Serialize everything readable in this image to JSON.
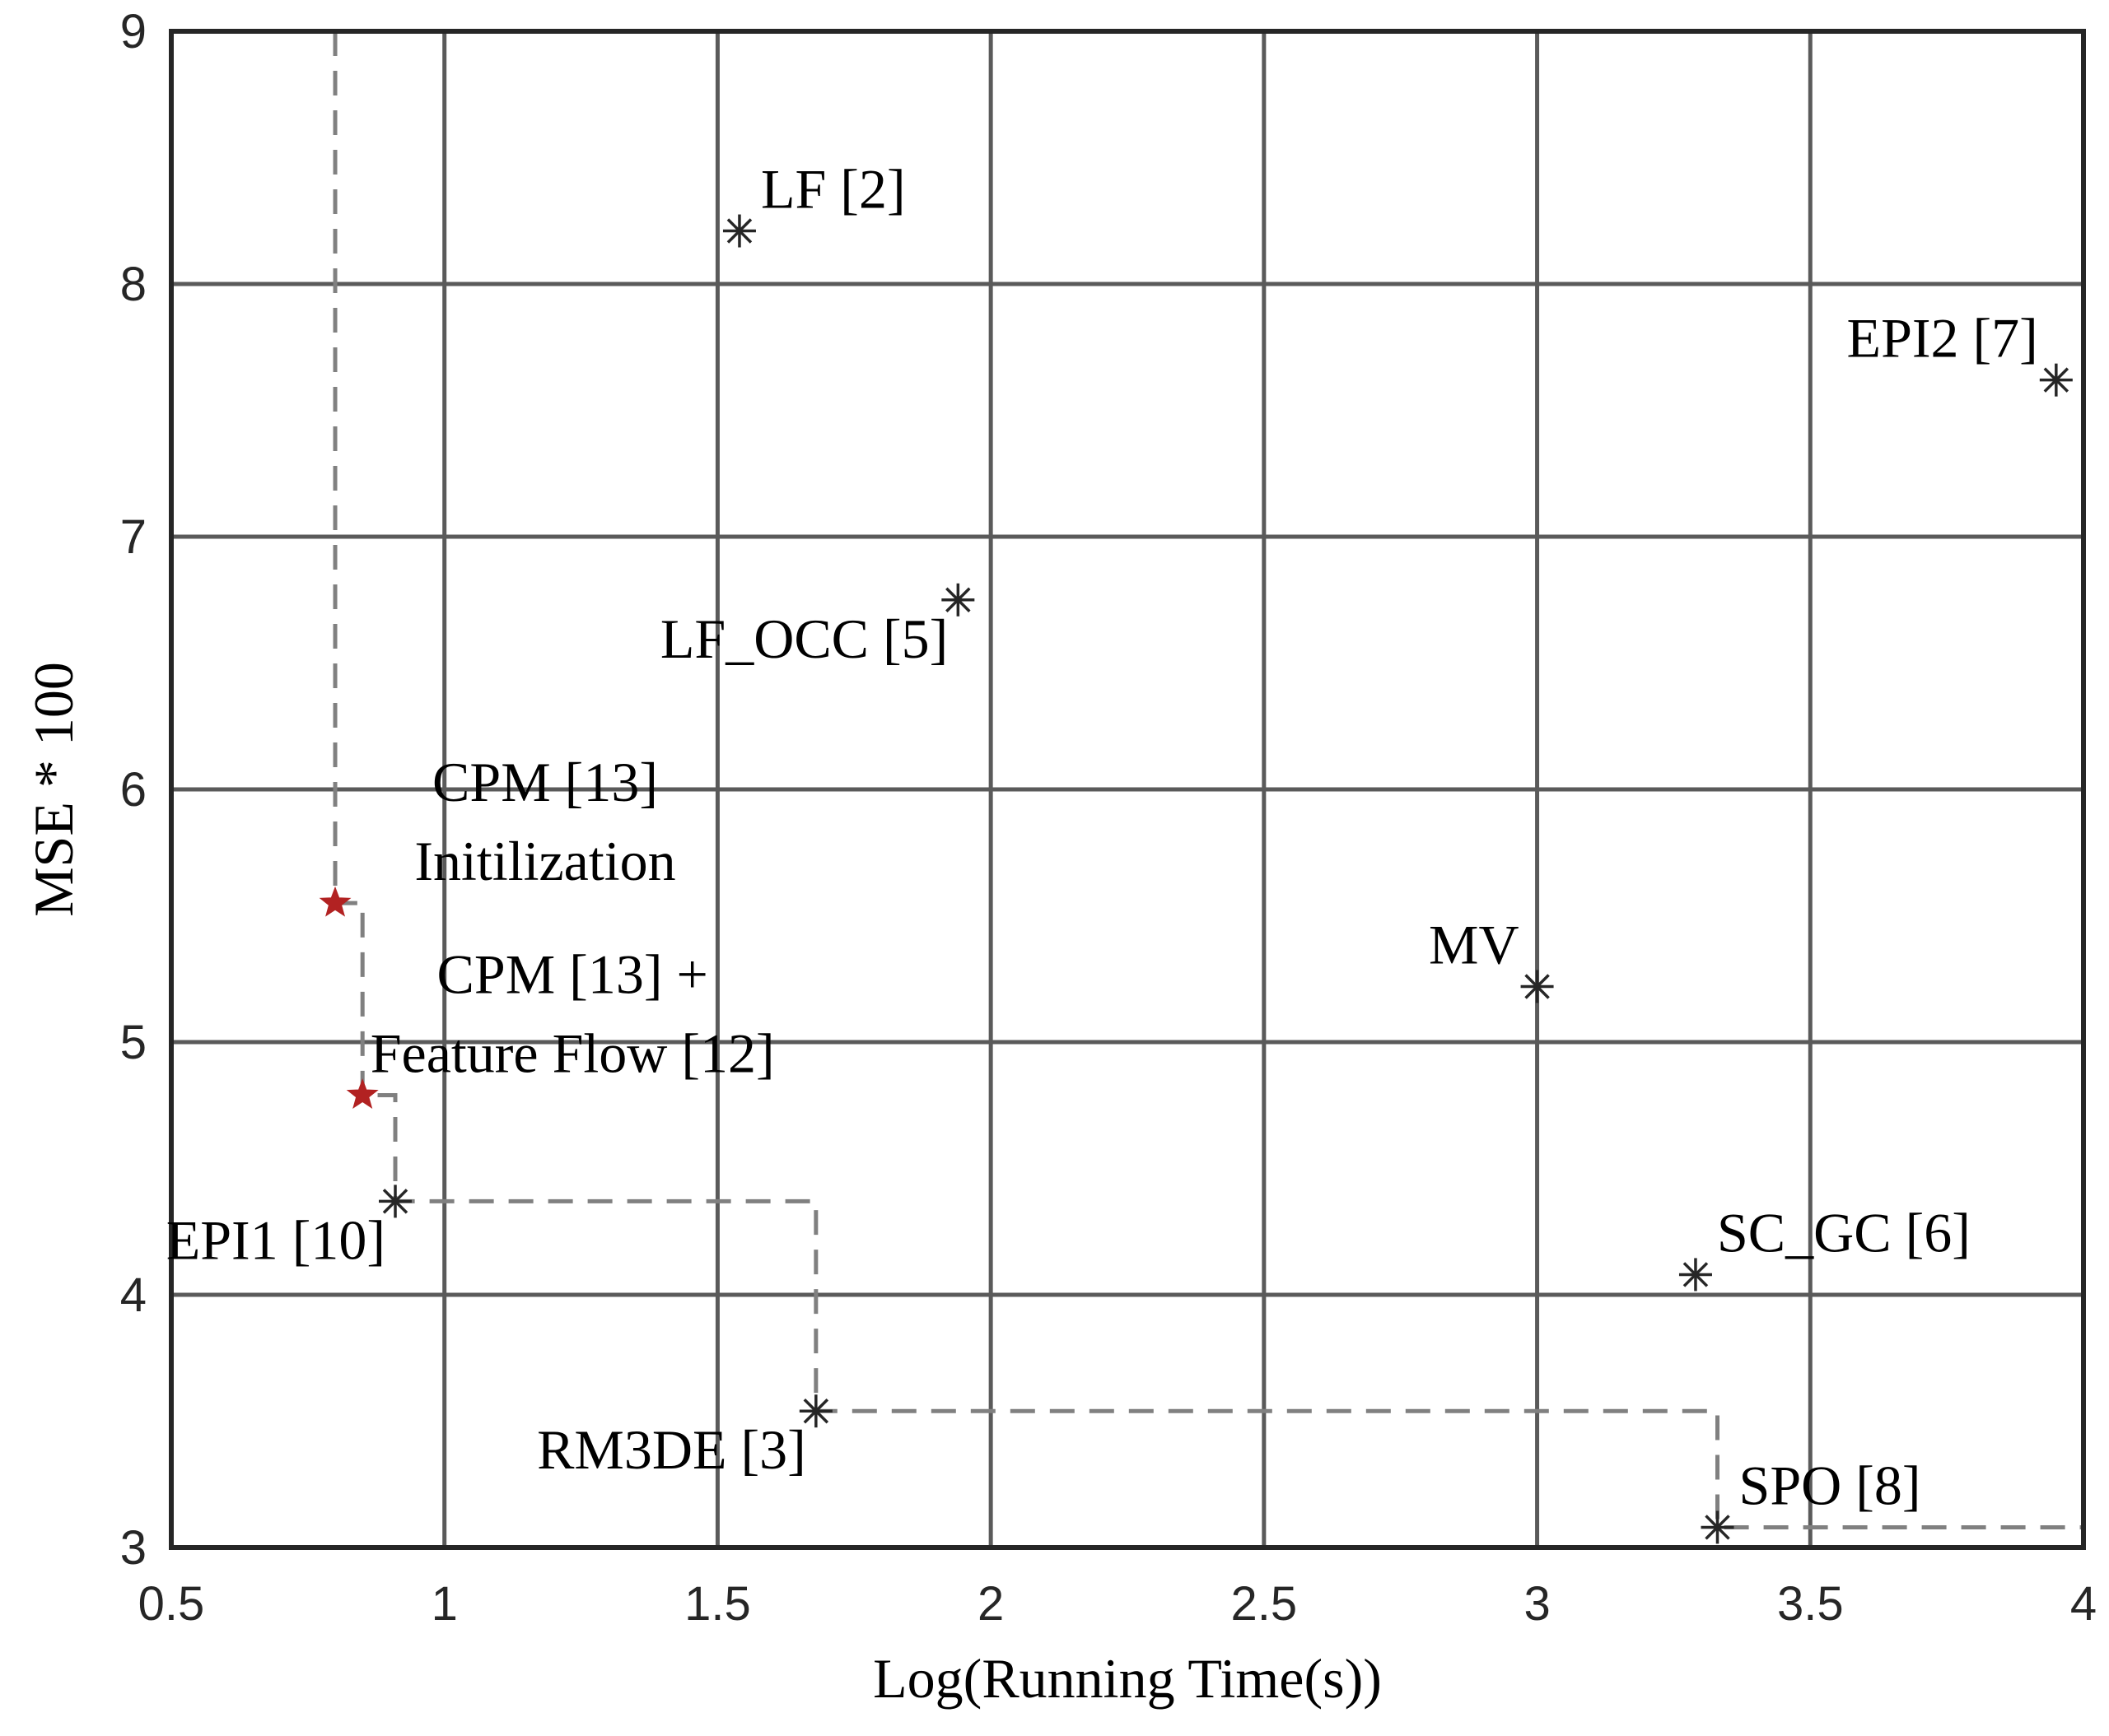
{
  "chart_data": {
    "type": "scatter",
    "xlabel": "Log(Running Time(s))",
    "ylabel": "MSE * 100",
    "xlim": [
      0.5,
      4
    ],
    "ylim": [
      3,
      9
    ],
    "xticks": [
      0.5,
      1,
      1.5,
      2,
      2.5,
      3,
      3.5,
      4
    ],
    "yticks": [
      3,
      4,
      5,
      6,
      7,
      8,
      9
    ],
    "xtick_labels": [
      "0.5",
      "1",
      "1.5",
      "2",
      "2.5",
      "3",
      "3.5",
      "4"
    ],
    "ytick_labels": [
      "3",
      "4",
      "5",
      "6",
      "7",
      "8",
      "9"
    ],
    "grid": true,
    "points": [
      {
        "x": 1.54,
        "y": 8.21,
        "marker": "asterisk",
        "color": "#262626",
        "label_lines": [
          "LF [2]"
        ],
        "label_pos": "top-right"
      },
      {
        "x": 3.95,
        "y": 7.62,
        "marker": "asterisk",
        "color": "#262626",
        "label_lines": [
          "EPI2 [7]"
        ],
        "label_pos": "top-left"
      },
      {
        "x": 1.94,
        "y": 6.75,
        "marker": "asterisk",
        "color": "#262626",
        "label_lines": [
          "LF_OCC [5]"
        ],
        "label_pos": "bottom-left"
      },
      {
        "x": 3.0,
        "y": 5.22,
        "marker": "asterisk",
        "color": "#262626",
        "label_lines": [
          "MV"
        ],
        "label_pos": "top-left"
      },
      {
        "x": 0.8,
        "y": 5.55,
        "marker": "star",
        "color": "#b22222",
        "label_lines": [
          "CPM [13]",
          "Initilization"
        ],
        "label_pos": "top-right"
      },
      {
        "x": 0.85,
        "y": 4.79,
        "marker": "star",
        "color": "#b22222",
        "label_lines": [
          "CPM [13] +",
          "Feature Flow [12]"
        ],
        "label_pos": "top-right"
      },
      {
        "x": 0.91,
        "y": 4.37,
        "marker": "asterisk",
        "color": "#262626",
        "label_lines": [
          "EPI1 [10]"
        ],
        "label_pos": "bottom-left"
      },
      {
        "x": 3.29,
        "y": 4.08,
        "marker": "asterisk",
        "color": "#262626",
        "label_lines": [
          "SC_GC [6]"
        ],
        "label_pos": "top-right"
      },
      {
        "x": 1.68,
        "y": 3.54,
        "marker": "asterisk",
        "color": "#262626",
        "label_lines": [
          "RM3DE [3]"
        ],
        "label_pos": "bottom-left"
      },
      {
        "x": 3.33,
        "y": 3.08,
        "marker": "asterisk",
        "color": "#262626",
        "label_lines": [
          "SPO [8]"
        ],
        "label_pos": "top-right"
      }
    ],
    "pareto_frontier": {
      "style": "dashed",
      "color": "#808080",
      "points": [
        [
          0.8,
          9
        ],
        [
          0.8,
          5.55
        ],
        [
          0.85,
          5.55
        ],
        [
          0.85,
          4.79
        ],
        [
          0.91,
          4.79
        ],
        [
          0.91,
          4.37
        ],
        [
          1.68,
          4.37
        ],
        [
          1.68,
          3.54
        ],
        [
          3.33,
          3.54
        ],
        [
          3.33,
          3.08
        ],
        [
          4,
          3.08
        ]
      ]
    }
  }
}
